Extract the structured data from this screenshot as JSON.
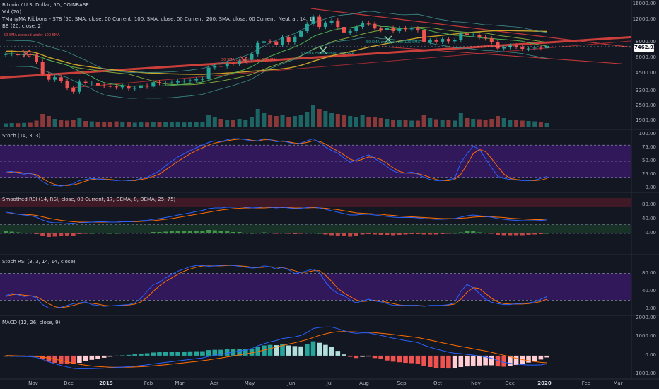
{
  "header": {
    "symbol": "Bitcoin / U.S. Dollar, 5D, COINBASE",
    "vol": "Vol (20)",
    "ribbons": "TManyMA Ribbons - ST8 (50, SMA, close, 00 Current, 100, SMA, close, 00 Current, 200, SMA, close, 00 Current, Neutral, 14, 1)",
    "bb": "BB (20, close, 2)"
  },
  "annotations": {
    "a1": "50 SMA crossed under 100 SMA",
    "a2": "50 SMA crossed under 100 SMA",
    "a3": "50 SMA crossed over 100 SMA",
    "a4": "50 SMA crossed over 200 SMA"
  },
  "price_tag": "7462.92",
  "panes": {
    "stoch": "Stoch (14, 3, 3)",
    "srsi": "Smoothed RSI (14, RSI, close, 00 Current, 17, DEMA, 8, DEMA, 25, 75)",
    "stochrsi": "Stoch RSI (3, 3, 14, 14, close)",
    "macd": "MACD (12, 26, close, 9)"
  },
  "axes": {
    "price_ticks": [
      "16000.00",
      "12000.00",
      "8000.00",
      "6000.00",
      "4500.00",
      "3300.00",
      "2500.00",
      "1900.00"
    ],
    "stoch_ticks": [
      "100.00",
      "75.00",
      "50.00",
      "25.00",
      "0.00"
    ],
    "srsi_ticks": [
      "80.00",
      "40.00",
      "0.00"
    ],
    "stochrsi_ticks": [
      "80.00",
      "40.00",
      "0.00"
    ],
    "macd_ticks": [
      "2000.00",
      "1000.00",
      "0.00",
      "-1000.00"
    ],
    "x_ticks": [
      "Nov",
      "Dec",
      "2019",
      "Feb",
      "Mar",
      "Apr",
      "May",
      "Jun",
      "Jul",
      "Aug",
      "Sep",
      "Oct",
      "Nov",
      "Dec",
      "2020",
      "Feb",
      "Mar"
    ]
  },
  "colors": {
    "up": "#26a69a",
    "down": "#ef5350",
    "bg": "#131722",
    "stoch_band": "#4a1a8a",
    "blue": "#2962ff",
    "orange": "#ff6d00"
  },
  "chart_data": {
    "type": "candlestick",
    "interval": "5D",
    "x_dates": [
      "2018-10-20",
      "2018-10-25",
      "2018-10-30",
      "2018-11-04",
      "2018-11-09",
      "2018-11-14",
      "2018-11-19",
      "2018-11-24",
      "2018-11-29",
      "2018-12-04",
      "2018-12-09",
      "2018-12-14",
      "2018-12-19",
      "2018-12-24",
      "2018-12-29",
      "2019-01-03",
      "2019-01-08",
      "2019-01-13",
      "2019-01-18",
      "2019-01-23",
      "2019-01-28",
      "2019-02-02",
      "2019-02-07",
      "2019-02-12",
      "2019-02-17",
      "2019-02-22",
      "2019-02-27",
      "2019-03-04",
      "2019-03-09",
      "2019-03-14",
      "2019-03-19",
      "2019-03-24",
      "2019-03-29",
      "2019-04-03",
      "2019-04-08",
      "2019-04-13",
      "2019-04-18",
      "2019-04-23",
      "2019-04-28",
      "2019-05-03",
      "2019-05-08",
      "2019-05-13",
      "2019-05-18",
      "2019-05-23",
      "2019-05-28",
      "2019-06-02",
      "2019-06-07",
      "2019-06-12",
      "2019-06-17",
      "2019-06-22",
      "2019-06-27",
      "2019-07-02",
      "2019-07-07",
      "2019-07-12",
      "2019-07-17",
      "2019-07-22",
      "2019-07-27",
      "2019-08-01",
      "2019-08-06",
      "2019-08-11",
      "2019-08-16",
      "2019-08-21",
      "2019-08-26",
      "2019-08-31",
      "2019-09-05",
      "2019-09-10",
      "2019-09-15",
      "2019-09-20",
      "2019-09-25",
      "2019-09-30",
      "2019-10-05",
      "2019-10-10",
      "2019-10-15",
      "2019-10-20",
      "2019-10-25",
      "2019-10-30",
      "2019-11-04",
      "2019-11-09",
      "2019-11-14",
      "2019-11-19",
      "2019-11-24",
      "2019-11-29",
      "2019-12-04",
      "2019-12-09",
      "2019-12-14",
      "2019-12-19",
      "2019-12-24",
      "2019-12-29",
      "2020-01-03"
    ],
    "close": [
      6480,
      6500,
      6320,
      6410,
      6380,
      5620,
      4500,
      4050,
      4230,
      3950,
      3500,
      3250,
      3900,
      3780,
      3820,
      3650,
      3610,
      3580,
      3530,
      3600,
      3440,
      3480,
      3620,
      3570,
      3870,
      3810,
      3830,
      3850,
      3920,
      3980,
      4000,
      4080,
      4100,
      5050,
      5190,
      5180,
      5440,
      5370,
      5720,
      5800,
      6440,
      7900,
      8150,
      8130,
      7650,
      8840,
      8020,
      8860,
      9800,
      11170,
      12750,
      10590,
      11460,
      11920,
      10590,
      9570,
      9800,
      10600,
      11450,
      11200,
      10280,
      10030,
      10370,
      9800,
      10300,
      10140,
      10300,
      9990,
      8050,
      8290,
      8100,
      8500,
      8150,
      8300,
      9400,
      9100,
      9200,
      8800,
      8600,
      8050,
      7150,
      7350,
      7540,
      7400,
      7100,
      7150,
      7250,
      7200,
      7460
    ],
    "volume": [
      55,
      60,
      58,
      62,
      65,
      95,
      190,
      160,
      120,
      100,
      95,
      110,
      130,
      90,
      85,
      75,
      70,
      80,
      85,
      75,
      70,
      65,
      70,
      68,
      80,
      75,
      72,
      70,
      72,
      68,
      70,
      75,
      78,
      180,
      150,
      120,
      110,
      100,
      120,
      110,
      150,
      260,
      200,
      170,
      160,
      180,
      150,
      160,
      170,
      220,
      320,
      260,
      230,
      200,
      190,
      170,
      160,
      150,
      170,
      150,
      140,
      130,
      120,
      110,
      105,
      100,
      95,
      95,
      170,
      130,
      115,
      110,
      100,
      95,
      200,
      130,
      120,
      115,
      110,
      120,
      160,
      130,
      110,
      100,
      95,
      90,
      85,
      80,
      60
    ],
    "stoch_k": [
      30,
      31,
      28,
      26,
      28,
      22,
      12,
      6,
      5,
      4,
      6,
      8,
      14,
      16,
      18,
      17,
      16,
      15,
      14,
      15,
      14,
      15,
      18,
      20,
      26,
      32,
      42,
      50,
      58,
      64,
      70,
      75,
      80,
      85,
      88,
      86,
      90,
      92,
      92,
      90,
      88,
      88,
      92,
      90,
      86,
      88,
      85,
      82,
      84,
      88,
      92,
      85,
      76,
      70,
      65,
      56,
      48,
      52,
      58,
      62,
      55,
      48,
      40,
      32,
      28,
      28,
      30,
      26,
      20,
      16,
      14,
      14,
      16,
      18,
      48,
      64,
      78,
      72,
      55,
      38,
      22,
      18,
      16,
      15,
      14,
      14,
      15,
      18,
      22
    ],
    "stoch_d": [
      28,
      30,
      30,
      28,
      27,
      25,
      18,
      11,
      7,
      5,
      5,
      6,
      9,
      13,
      16,
      17,
      17,
      16,
      15,
      15,
      14,
      14,
      16,
      18,
      22,
      26,
      34,
      42,
      50,
      57,
      64,
      70,
      75,
      80,
      84,
      86,
      88,
      90,
      91,
      91,
      89,
      88,
      90,
      90,
      88,
      87,
      86,
      84,
      83,
      85,
      88,
      87,
      82,
      75,
      69,
      62,
      54,
      50,
      54,
      58,
      57,
      53,
      46,
      38,
      31,
      28,
      28,
      27,
      24,
      20,
      16,
      14,
      14,
      16,
      26,
      44,
      64,
      72,
      68,
      55,
      40,
      26,
      18,
      16,
      15,
      14,
      14,
      15,
      18
    ],
    "rsi_fast": [
      60,
      58,
      54,
      52,
      50,
      46,
      38,
      32,
      30,
      30,
      28,
      27,
      30,
      31,
      32,
      33,
      33,
      32,
      32,
      33,
      33,
      34,
      36,
      37,
      40,
      42,
      45,
      48,
      52,
      55,
      58,
      62,
      65,
      70,
      72,
      72,
      74,
      74,
      75,
      74,
      72,
      73,
      75,
      74,
      72,
      74,
      72,
      70,
      71,
      73,
      75,
      72,
      68,
      64,
      60,
      56,
      52,
      52,
      54,
      54,
      52,
      50,
      48,
      46,
      45,
      45,
      45,
      44,
      42,
      41,
      40,
      40,
      41,
      42,
      46,
      50,
      52,
      50,
      48,
      46,
      42,
      40,
      38,
      37,
      36,
      36,
      36,
      37,
      38
    ],
    "rsi_slow": [
      55,
      56,
      55,
      54,
      53,
      51,
      47,
      43,
      40,
      37,
      35,
      33,
      32,
      32,
      32,
      32,
      32,
      32,
      32,
      33,
      33,
      33,
      34,
      35,
      36,
      38,
      40,
      42,
      45,
      48,
      51,
      54,
      57,
      60,
      63,
      66,
      68,
      70,
      71,
      72,
      72,
      72,
      72,
      73,
      73,
      73,
      73,
      72,
      72,
      72,
      73,
      72,
      71,
      69,
      67,
      64,
      61,
      58,
      57,
      56,
      55,
      54,
      52,
      51,
      49,
      48,
      47,
      46,
      45,
      44,
      43,
      42,
      42,
      42,
      43,
      44,
      46,
      47,
      47,
      47,
      46,
      45,
      43,
      42,
      41,
      40,
      39,
      39,
      38
    ],
    "srsi_hist": [
      6,
      5,
      3,
      2,
      1,
      -2,
      -8,
      -10,
      -9,
      -8,
      -7,
      -6,
      -2,
      -1,
      0,
      1,
      1,
      0,
      0,
      1,
      1,
      1,
      2,
      2,
      4,
      4,
      5,
      6,
      7,
      7,
      7,
      8,
      8,
      10,
      9,
      6,
      6,
      4,
      4,
      2,
      0,
      1,
      3,
      1,
      -1,
      1,
      -1,
      -2,
      -1,
      1,
      2,
      0,
      -3,
      -5,
      -7,
      -8,
      -9,
      -6,
      -3,
      -2,
      -3,
      -4,
      -4,
      -5,
      -4,
      -3,
      -2,
      -2,
      -3,
      -3,
      -3,
      -2,
      -1,
      0,
      3,
      6,
      6,
      3,
      1,
      -1,
      -4,
      -5,
      -5,
      -5,
      -5,
      -4,
      -3,
      -2,
      0
    ],
    "stochrsi_k": [
      30,
      35,
      32,
      28,
      30,
      25,
      10,
      2,
      2,
      4,
      8,
      12,
      14,
      16,
      10,
      8,
      6,
      7,
      8,
      9,
      10,
      14,
      24,
      40,
      55,
      60,
      70,
      78,
      85,
      90,
      95,
      98,
      98,
      96,
      97,
      98,
      99,
      98,
      96,
      94,
      92,
      93,
      97,
      95,
      90,
      94,
      88,
      80,
      82,
      86,
      90,
      82,
      60,
      45,
      35,
      30,
      20,
      14,
      18,
      22,
      18,
      16,
      12,
      8,
      8,
      8,
      8,
      8,
      6,
      8,
      8,
      8,
      10,
      14,
      40,
      55,
      48,
      35,
      22,
      15,
      12,
      10,
      10,
      12,
      12,
      14,
      16,
      22,
      28
    ],
    "stochrsi_d": [
      28,
      32,
      33,
      31,
      30,
      28,
      20,
      12,
      5,
      3,
      5,
      8,
      12,
      14,
      13,
      11,
      8,
      7,
      7,
      8,
      9,
      11,
      16,
      26,
      40,
      52,
      62,
      70,
      78,
      85,
      90,
      94,
      97,
      97,
      97,
      97,
      98,
      98,
      97,
      96,
      94,
      93,
      94,
      95,
      94,
      93,
      90,
      86,
      82,
      83,
      86,
      86,
      76,
      62,
      46,
      36,
      28,
      20,
      17,
      18,
      19,
      18,
      15,
      12,
      9,
      8,
      8,
      8,
      7,
      7,
      7,
      8,
      9,
      11,
      22,
      38,
      48,
      46,
      35,
      24,
      16,
      12,
      11,
      11,
      11,
      12,
      14,
      17,
      22
    ],
    "macd": [
      -20,
      -30,
      -40,
      -45,
      -55,
      -90,
      -200,
      -330,
      -430,
      -520,
      -600,
      -680,
      -700,
      -700,
      -690,
      -680,
      -670,
      -650,
      -630,
      -610,
      -590,
      -560,
      -520,
      -490,
      -440,
      -400,
      -360,
      -320,
      -280,
      -240,
      -200,
      -160,
      -120,
      -40,
      20,
      70,
      140,
      190,
      250,
      300,
      380,
      520,
      640,
      740,
      810,
      920,
      960,
      1010,
      1080,
      1240,
      1450,
      1510,
      1530,
      1530,
      1440,
      1330,
      1240,
      1190,
      1220,
      1220,
      1150,
      1080,
      1010,
      930,
      870,
      810,
      760,
      700,
      560,
      450,
      350,
      270,
      190,
      130,
      110,
      70,
      30,
      -20,
      -70,
      -140,
      -260,
      -350,
      -410,
      -450,
      -480,
      -500,
      -500,
      -490,
      -440
    ],
    "macd_signal": [
      10,
      0,
      -10,
      -20,
      -30,
      -45,
      -80,
      -130,
      -190,
      -260,
      -330,
      -400,
      -460,
      -510,
      -550,
      -580,
      -600,
      -615,
      -620,
      -620,
      -615,
      -605,
      -590,
      -570,
      -545,
      -515,
      -485,
      -450,
      -415,
      -380,
      -345,
      -310,
      -270,
      -225,
      -175,
      -125,
      -70,
      -20,
      40,
      90,
      150,
      220,
      300,
      380,
      460,
      540,
      620,
      690,
      770,
      860,
      970,
      1080,
      1170,
      1240,
      1280,
      1290,
      1280,
      1270,
      1260,
      1250,
      1230,
      1200,
      1170,
      1130,
      1090,
      1050,
      1010,
      970,
      900,
      830,
      760,
      690,
      620,
      550,
      490,
      430,
      370,
      310,
      250,
      180,
      100,
      20,
      -60,
      -140,
      -210,
      -270,
      -320,
      -360,
      -380
    ],
    "price_ylim": [
      1700,
      16000
    ],
    "price_scale": "log",
    "stoch_ylim": [
      0,
      100
    ],
    "srsi_ylim": [
      -20,
      100
    ],
    "stochrsi_ylim": [
      -5,
      100
    ],
    "macd_ylim": [
      -1100,
      2000
    ]
  }
}
